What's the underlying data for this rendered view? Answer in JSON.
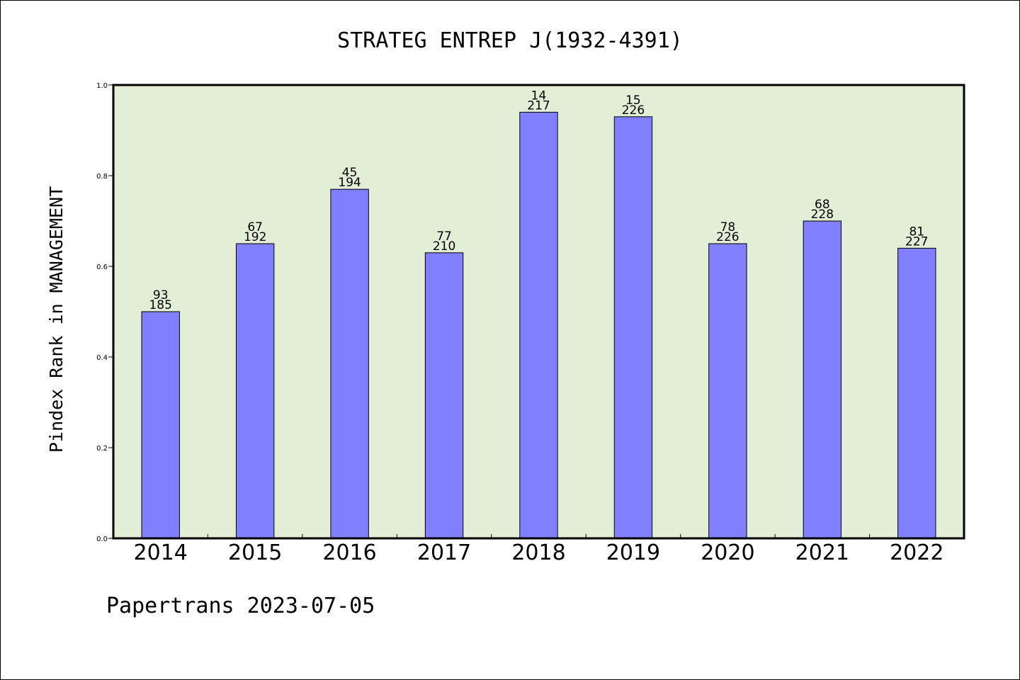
{
  "chart_data": {
    "type": "bar",
    "title": "STRATEG ENTREP J(1932-4391)",
    "xlabel": "",
    "ylabel": "Pindex Rank in MANAGEMENT",
    "ylim": [
      0,
      1.0
    ],
    "yticks": [
      "0.0",
      "0.2",
      "0.4",
      "0.6",
      "0.8",
      "1.0"
    ],
    "categories": [
      "2014",
      "2015",
      "2016",
      "2017",
      "2018",
      "2019",
      "2020",
      "2021",
      "2022"
    ],
    "values": [
      0.5,
      0.65,
      0.77,
      0.63,
      0.94,
      0.93,
      0.65,
      0.7,
      0.64
    ],
    "rank_labels": [
      "93",
      "67",
      "45",
      "77",
      "14",
      "15",
      "78",
      "68",
      "81"
    ],
    "total_labels": [
      "185",
      "192",
      "194",
      "210",
      "217",
      "226",
      "226",
      "228",
      "227"
    ],
    "grid": false,
    "colors": {
      "bar": "#8080ff",
      "plot_background": "#e2efd6",
      "frame": "#000000"
    }
  },
  "footer": "Papertrans 2023-07-05"
}
